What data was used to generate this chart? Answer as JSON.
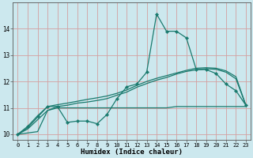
{
  "xlabel": "Humidex (Indice chaleur)",
  "bg_color": "#cce8ee",
  "grid_color": "#d4a0a0",
  "line_color": "#1a7a6e",
  "xlim": [
    -0.5,
    23.5
  ],
  "ylim": [
    9.8,
    15.0
  ],
  "xticks": [
    0,
    1,
    2,
    3,
    4,
    5,
    6,
    7,
    8,
    9,
    10,
    11,
    12,
    13,
    14,
    15,
    16,
    17,
    18,
    19,
    20,
    21,
    22,
    23
  ],
  "yticks": [
    10,
    11,
    12,
    13,
    14
  ],
  "s1_x": [
    0,
    1,
    2,
    3,
    4,
    5,
    6,
    7,
    8,
    9,
    10,
    11,
    12,
    13,
    14,
    15,
    16,
    17,
    18,
    19,
    20,
    21,
    22,
    23
  ],
  "s1_y": [
    10.0,
    10.3,
    10.7,
    11.05,
    11.05,
    10.45,
    10.5,
    10.5,
    10.4,
    10.75,
    11.35,
    11.8,
    11.9,
    12.35,
    14.55,
    13.9,
    13.9,
    13.65,
    12.45,
    12.45,
    12.3,
    11.9,
    11.65,
    11.1
  ],
  "s2_x": [
    0,
    1,
    2,
    3,
    4,
    5,
    6,
    7,
    8,
    9,
    10,
    11,
    12,
    13,
    14,
    15,
    16,
    17,
    18,
    19,
    20,
    21,
    22,
    23
  ],
  "s2_y": [
    10.0,
    10.2,
    10.55,
    10.9,
    11.05,
    11.1,
    11.18,
    11.22,
    11.28,
    11.35,
    11.48,
    11.6,
    11.78,
    11.92,
    12.05,
    12.15,
    12.28,
    12.38,
    12.44,
    12.48,
    12.46,
    12.35,
    12.1,
    11.1
  ],
  "s3_x": [
    0,
    1,
    2,
    3,
    4,
    5,
    6,
    7,
    8,
    9,
    10,
    11,
    12,
    13,
    14,
    15,
    16,
    17,
    18,
    19,
    20,
    21,
    22,
    23
  ],
  "s3_y": [
    10.0,
    10.25,
    10.65,
    11.05,
    11.12,
    11.18,
    11.25,
    11.32,
    11.38,
    11.45,
    11.55,
    11.68,
    11.85,
    12.0,
    12.12,
    12.22,
    12.32,
    12.42,
    12.5,
    12.52,
    12.5,
    12.4,
    12.18,
    11.1
  ],
  "s4_x": [
    0,
    1,
    2,
    3,
    4,
    5,
    6,
    7,
    8,
    9,
    10,
    11,
    12,
    13,
    14,
    15,
    16,
    17,
    18,
    19,
    20,
    21,
    22,
    23
  ],
  "s4_y": [
    10.0,
    10.05,
    10.1,
    10.9,
    11.0,
    11.0,
    11.0,
    11.0,
    11.0,
    11.0,
    11.0,
    11.0,
    11.0,
    11.0,
    11.0,
    11.0,
    11.05,
    11.05,
    11.05,
    11.05,
    11.05,
    11.05,
    11.05,
    11.05
  ]
}
